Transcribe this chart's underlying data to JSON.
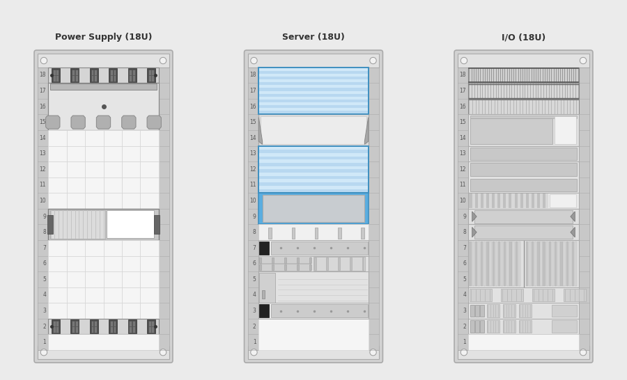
{
  "title_fontsize": 9,
  "rack_titles": [
    "Power Supply (18U)",
    "Server (18U)",
    "I/O (18U)"
  ],
  "fig_bg": "#ebebeb",
  "colors": {
    "light_blue": "#b8d8f0",
    "light_blue2": "#93c6e8",
    "light_gray": "#d8d8d8",
    "mid_gray": "#c0c0c0",
    "dark_gray": "#909090",
    "white": "#ffffff",
    "rack_outer": "#d0d0d0",
    "rack_rail": "#e0e0e0",
    "rack_inner": "#f5f5f5",
    "rack_ear": "#c8c8c8",
    "screw": "#f0f0f0",
    "grid_line": "#d8d8d8",
    "blue_border": "#5aade0"
  }
}
